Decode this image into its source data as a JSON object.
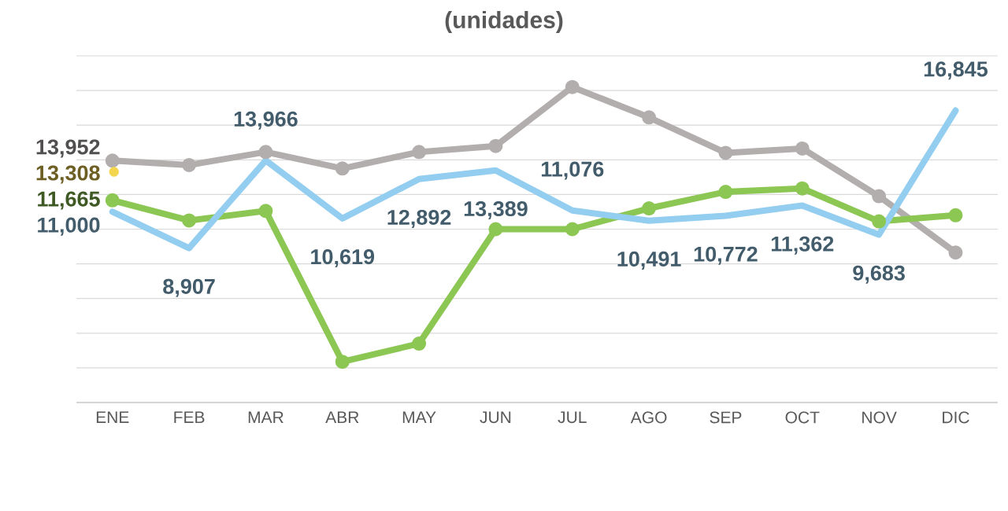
{
  "chart_data": {
    "type": "line",
    "title": "(unidades)",
    "categories": [
      "ENE",
      "FEB",
      "MAR",
      "ABR",
      "MAY",
      "JUN",
      "JUL",
      "AGO",
      "SEP",
      "OCT",
      "NOV",
      "DIC"
    ],
    "ylim": [
      0,
      20000
    ],
    "yticks": [
      {
        "value": 0,
        "label": null
      },
      {
        "value": 2000,
        "label": null
      },
      {
        "value": 4000,
        "label": null
      },
      {
        "value": 6000,
        "label": null
      },
      {
        "value": 8000,
        "label": null
      },
      {
        "value": 10000,
        "label": null
      },
      {
        "value": 12000,
        "label": null
      },
      {
        "value": 14000,
        "label": null
      },
      {
        "value": 16000,
        "label": null
      },
      {
        "value": 18000,
        "label": null
      },
      {
        "value": 20000,
        "label": null
      }
    ],
    "tick_labels": "x",
    "grid": "y",
    "marker": "circle",
    "series": [
      {
        "color": "#b3aeae",
        "values": [
          13952,
          13700,
          14450,
          13500,
          14450,
          14800,
          18200,
          16450,
          14400,
          14650,
          11900,
          8650
        ],
        "value_labels": [
          "13,952",
          null,
          null,
          null,
          null,
          null,
          null,
          null,
          null,
          null,
          null,
          null
        ]
      },
      {
        "color": "#8cc653",
        "values": [
          11665,
          10500,
          11050,
          2350,
          3400,
          10000,
          10000,
          11200,
          12150,
          12350,
          10450,
          10800
        ],
        "value_labels": [
          "11,665",
          null,
          null,
          null,
          null,
          null,
          null,
          null,
          null,
          null,
          null,
          null
        ]
      },
      {
        "color": "#93cdef",
        "marker": "none",
        "values": [
          11000,
          8907,
          13966,
          10619,
          12892,
          13389,
          11076,
          10491,
          10772,
          11362,
          9683,
          16845
        ],
        "value_labels": [
          "11,000",
          "8,907",
          "13,966",
          "10,619",
          "12,892",
          "13,389",
          "11,076",
          "10,491",
          "10,772",
          "11,362",
          "9,683",
          "16,845"
        ]
      },
      {
        "type": "scatter",
        "color": "#f3d54e",
        "values": [
          13308,
          null,
          null,
          null,
          null,
          null,
          null,
          null,
          null,
          null,
          null,
          null
        ],
        "value_labels": [
          "13,308",
          null,
          null,
          null,
          null,
          null,
          null,
          null,
          null,
          null,
          null,
          null
        ]
      }
    ]
  }
}
